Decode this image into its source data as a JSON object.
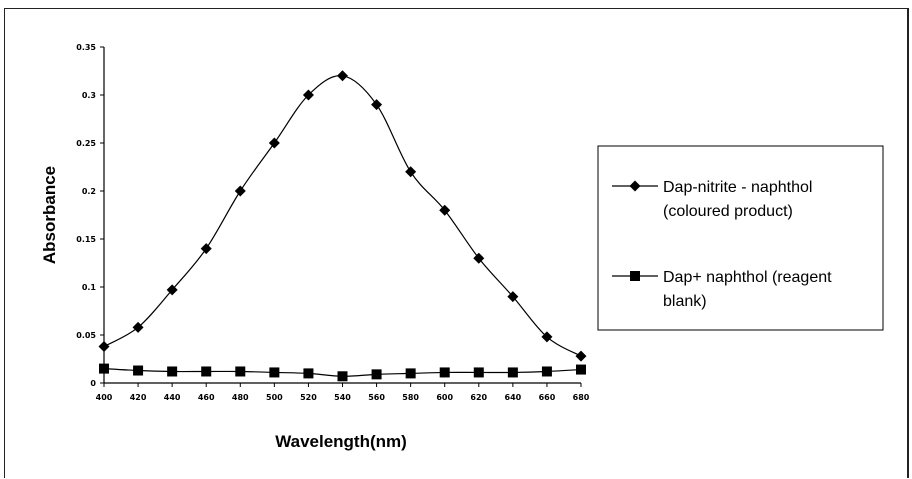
{
  "chart_data": {
    "type": "line",
    "xlabel": "Wavelength(nm)",
    "ylabel": "Absorbance",
    "x": [
      400,
      420,
      440,
      460,
      480,
      500,
      520,
      540,
      560,
      580,
      600,
      620,
      640,
      660,
      680
    ],
    "xlim": [
      400,
      680
    ],
    "ylim": [
      0,
      0.35
    ],
    "yticks": [
      "0",
      "0.05",
      "0.1",
      "0.15",
      "0.2",
      "0.25",
      "0.3",
      "0.35"
    ],
    "grid": false,
    "legend_position": "right",
    "series": [
      {
        "name": "Dap-nitrite - naphthol (coloured product)",
        "legend_lines": [
          "Dap-nitrite - naphthol",
          "(coloured product)"
        ],
        "marker": "diamond",
        "color": "#000000",
        "values": [
          0.038,
          0.058,
          0.097,
          0.14,
          0.2,
          0.25,
          0.3,
          0.32,
          0.29,
          0.22,
          0.18,
          0.13,
          0.09,
          0.048,
          0.028
        ]
      },
      {
        "name": "Dap+ naphthol (reagent blank)",
        "legend_lines": [
          "Dap+ naphthol (reagent",
          "blank)"
        ],
        "marker": "square",
        "color": "#000000",
        "values": [
          0.015,
          0.013,
          0.012,
          0.012,
          0.012,
          0.011,
          0.01,
          0.007,
          0.009,
          0.01,
          0.011,
          0.011,
          0.011,
          0.012,
          0.014
        ]
      }
    ]
  }
}
